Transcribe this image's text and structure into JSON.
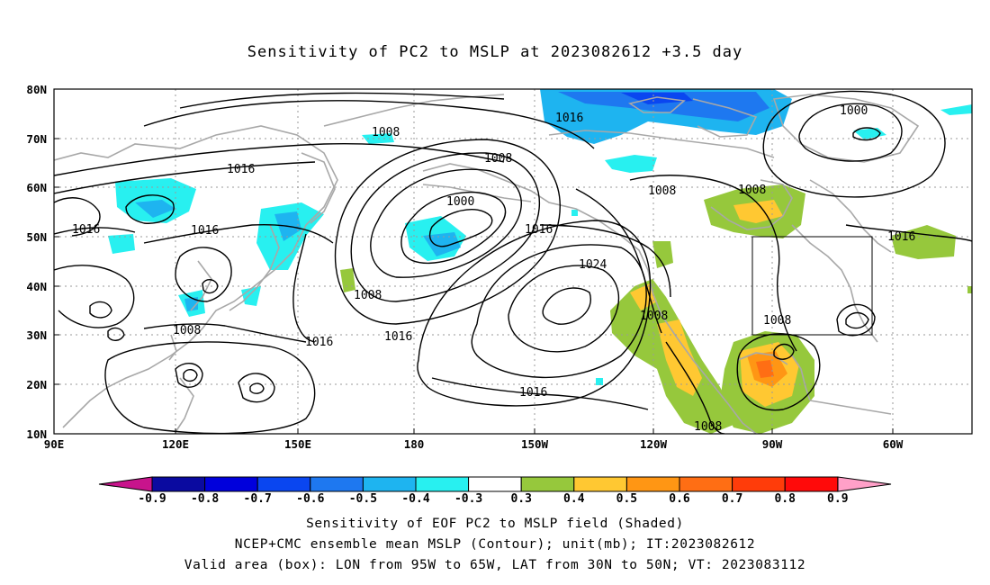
{
  "title": "Sensitivity of PC2 to MSLP at 2023082612 +3.5 day",
  "lat_labels": [
    "80N",
    "70N",
    "60N",
    "50N",
    "40N",
    "30N",
    "20N",
    "10N"
  ],
  "lon_labels": [
    "90E",
    "120E",
    "150E",
    "180",
    "150W",
    "120W",
    "90W",
    "60W"
  ],
  "isobars": [
    {
      "label": "1016",
      "value": 1016
    },
    {
      "label": "1008",
      "value": 1008
    },
    {
      "label": "1000",
      "value": 1000
    },
    {
      "label": "1024",
      "value": 1024
    }
  ],
  "colorbar": {
    "ticks": [
      "-0.9",
      "-0.8",
      "-0.7",
      "-0.6",
      "-0.5",
      "-0.4",
      "-0.3",
      "0.3",
      "0.4",
      "0.5",
      "0.6",
      "0.7",
      "0.8",
      "0.9"
    ],
    "colors": [
      "#0a0aa0",
      "#0000dc",
      "#0a46f0",
      "#1e78f0",
      "#1eb4f0",
      "#28f0f0",
      "#ffffff",
      "#96c83c",
      "#ffc832",
      "#ff9614",
      "#ff6e14",
      "#ff3c0a",
      "#ff0a0a"
    ],
    "low_end_color": "#c8148c",
    "high_end_color": "#ffa0c8"
  },
  "captions": [
    "Sensitivity of EOF PC2 to MSLP field (Shaded)",
    "NCEP+CMC ensemble mean MSLP (Contour); unit(mb); IT:2023082612",
    "Valid area (box): LON from 95W to 65W, LAT from 30N to 50N; VT: 2023083112"
  ]
}
